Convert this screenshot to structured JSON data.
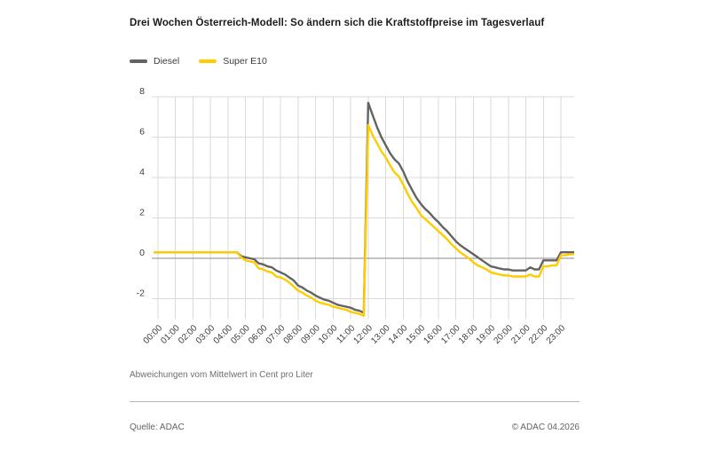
{
  "header": {
    "title": "Drei Wochen Österreich-Modell: So ändern sich die Kraftstoffpreise im Tagesverlauf"
  },
  "legend": [
    {
      "label": "Diesel",
      "color": "#646362"
    },
    {
      "label": "Super E10",
      "color": "#ffcc00"
    }
  ],
  "caption": "Abweichungen vom Mittelwert in Cent pro Liter",
  "footer": {
    "source": "Quelle: ADAC",
    "copyright": "© ADAC 04.2026"
  },
  "colors": {
    "diesel_line": "#646362",
    "super_e10_line": "#ffcc00",
    "gridline": "#dadada",
    "zero_line": "#8a8a8a",
    "text": "#3c3c3b"
  },
  "chart_data": {
    "type": "line",
    "title": "Drei Wochen Österreich-Modell: So ändern sich die Kraftstoffpreise im Tagesverlauf",
    "ylabel_note": "Abweichungen vom Mittelwert in Cent pro Liter",
    "x_unit": "time of day",
    "x_start": "00:00",
    "x_step_minutes": 15,
    "x_tick_labels": [
      "00:00",
      "01:00",
      "02:00",
      "03:00",
      "04:00",
      "05:00",
      "06:00",
      "07:00",
      "08:00",
      "09:00",
      "10:00",
      "11:00",
      "12:00",
      "13:00",
      "14:00",
      "15:00",
      "16:00",
      "17:00",
      "18:00",
      "19:00",
      "20:00",
      "21:00",
      "22:00",
      "23:00"
    ],
    "ylim": [
      -3,
      8
    ],
    "yticks": [
      8,
      6,
      4,
      2,
      0,
      -2
    ],
    "grid": true,
    "legend_position": "top-left",
    "series": [
      {
        "name": "Diesel",
        "color": "#646362",
        "values": [
          0.3,
          0.3,
          0.3,
          0.3,
          0.3,
          0.3,
          0.3,
          0.3,
          0.3,
          0.3,
          0.3,
          0.3,
          0.3,
          0.3,
          0.3,
          0.3,
          0.3,
          0.3,
          0.3,
          0.1,
          0.05,
          0.0,
          -0.05,
          -0.25,
          -0.3,
          -0.4,
          -0.45,
          -0.6,
          -0.7,
          -0.8,
          -0.95,
          -1.1,
          -1.35,
          -1.45,
          -1.6,
          -1.7,
          -1.85,
          -1.95,
          -2.05,
          -2.1,
          -2.2,
          -2.3,
          -2.35,
          -2.4,
          -2.45,
          -2.55,
          -2.6,
          -2.7,
          7.7,
          7.1,
          6.5,
          6.0,
          5.6,
          5.2,
          4.9,
          4.7,
          4.3,
          3.8,
          3.4,
          3.0,
          2.7,
          2.45,
          2.25,
          2.0,
          1.8,
          1.55,
          1.35,
          1.1,
          0.85,
          0.65,
          0.5,
          0.35,
          0.2,
          0.05,
          -0.1,
          -0.25,
          -0.4,
          -0.45,
          -0.5,
          -0.55,
          -0.55,
          -0.6,
          -0.6,
          -0.6,
          -0.6,
          -0.45,
          -0.55,
          -0.55,
          -0.1,
          -0.1,
          -0.1,
          -0.1,
          0.3,
          0.3,
          0.3,
          0.3
        ]
      },
      {
        "name": "Super E10",
        "color": "#ffcc00",
        "values": [
          0.3,
          0.3,
          0.3,
          0.3,
          0.3,
          0.3,
          0.3,
          0.3,
          0.3,
          0.3,
          0.3,
          0.3,
          0.3,
          0.3,
          0.3,
          0.3,
          0.3,
          0.3,
          0.3,
          0.05,
          -0.1,
          -0.15,
          -0.2,
          -0.5,
          -0.55,
          -0.65,
          -0.7,
          -0.9,
          -0.95,
          -1.05,
          -1.2,
          -1.4,
          -1.6,
          -1.7,
          -1.85,
          -1.95,
          -2.1,
          -2.2,
          -2.25,
          -2.3,
          -2.4,
          -2.45,
          -2.5,
          -2.55,
          -2.65,
          -2.7,
          -2.75,
          -2.85,
          6.6,
          6.1,
          5.7,
          5.3,
          5.0,
          4.6,
          4.25,
          4.05,
          3.65,
          3.2,
          2.8,
          2.5,
          2.15,
          1.95,
          1.75,
          1.55,
          1.35,
          1.15,
          0.95,
          0.7,
          0.5,
          0.3,
          0.15,
          0.0,
          -0.2,
          -0.35,
          -0.45,
          -0.55,
          -0.7,
          -0.75,
          -0.8,
          -0.85,
          -0.85,
          -0.9,
          -0.9,
          -0.9,
          -0.9,
          -0.8,
          -0.9,
          -0.9,
          -0.4,
          -0.4,
          -0.35,
          -0.35,
          0.15,
          0.15,
          0.2,
          0.2
        ]
      }
    ]
  }
}
